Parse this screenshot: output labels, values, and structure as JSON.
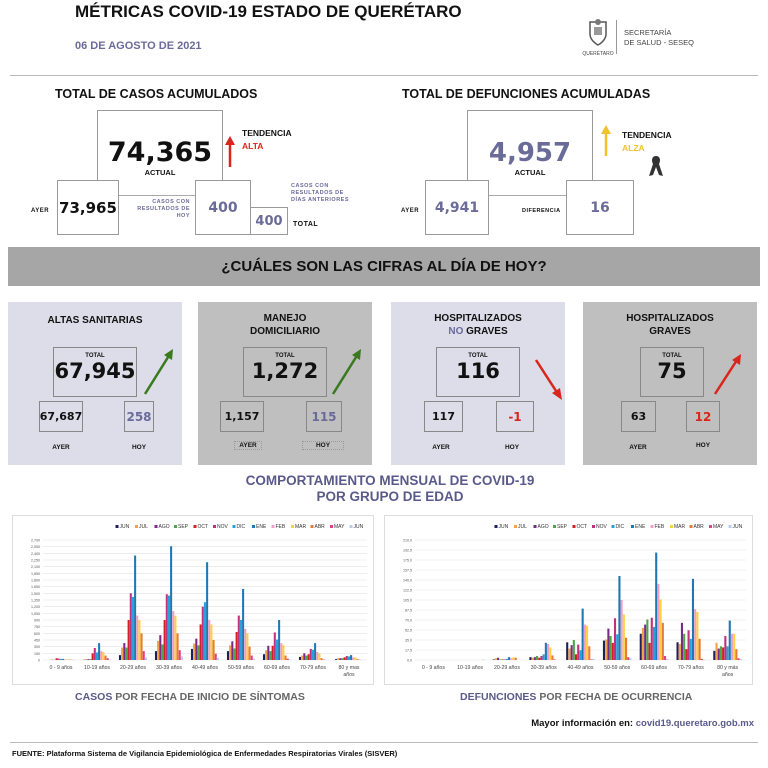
{
  "header": {
    "title": "MÉTRICAS COVID-19 ESTADO DE QUERÉTARO",
    "date": "06 DE AGOSTO DE 2021",
    "logo_text": "QUERÉTARO",
    "org_line1": "SECRETARÍA",
    "org_line2": "DE SALUD - SESEQ"
  },
  "casos": {
    "title": "TOTAL DE CASOS ACUMULADOS",
    "actual": "74,365",
    "actual_label": "ACTUAL",
    "ayer_label": "AYER",
    "ayer": "73,965",
    "hoy_label": "CASOS CON RESULTADOS DE HOY",
    "hoy": "400",
    "anteriores_label": "CASOS CON RESULTADOS DE DÍAS ANTERIORES",
    "total": "400",
    "total_label": "TOTAL",
    "tendencia": "TENDENCIA",
    "tendencia_value": "ALTA",
    "tendencia_color": "#d9261c"
  },
  "defunciones": {
    "title": "TOTAL DE DEFUNCIONES ACUMULADAS",
    "actual": "4,957",
    "actual_label": "ACTUAL",
    "ayer_label": "AYER",
    "ayer": "4,941",
    "diferencia_label": "DIFERENCIA",
    "diferencia": "16",
    "tendencia": "TENDENCIA",
    "tendencia_value": "ALZA",
    "tendencia_color": "#f2c12e"
  },
  "banner": "¿CUÁLES SON LAS CIFRAS AL DÍA DE HOY?",
  "cards": [
    {
      "title": "ALTAS SANITARIAS",
      "title2": "",
      "total_label": "TOTAL",
      "total": "67,945",
      "ayer": "67,687",
      "hoy": "258",
      "ayer_label": "AYER",
      "hoy_label": "HOY",
      "trend": "up",
      "trend_color": "#3a7a1e"
    },
    {
      "title": "MANEJO",
      "title2": "DOMICILIARIO",
      "total_label": "TOTAL",
      "total": "1,272",
      "ayer": "1,157",
      "hoy": "115",
      "ayer_label": "AYER",
      "hoy_label": "HOY",
      "trend": "up",
      "trend_color": "#3a7a1e"
    },
    {
      "title": "HOSPITALIZADOS",
      "title2a": "NO",
      "title2": "GRAVES",
      "total_label": "TOTAL",
      "total": "116",
      "ayer": "117",
      "hoy": "-1",
      "ayer_label": "AYER",
      "hoy_label": "HOY",
      "trend": "down",
      "trend_color": "#d9261c"
    },
    {
      "title": "HOSPITALIZADOS",
      "title2": "GRAVES",
      "total_label": "TOTAL",
      "total": "75",
      "ayer": "63",
      "hoy": "12",
      "ayer_label": "AYER",
      "hoy_label": "HOY",
      "trend": "up",
      "trend_color": "#d9261c"
    }
  ],
  "section_title1": "COMPORTAMIENTO MENSUAL DE COVID-19",
  "section_title2": "POR GRUPO DE EDAD",
  "caption1": {
    "accent": "CASOS",
    "rest": " POR FECHA DE INICIO DE SÍNTOMAS"
  },
  "caption2": {
    "accent": "DEFUNCIONES",
    "rest": " POR FECHA DE OCURRENCIA"
  },
  "more_info_label": "Mayor información en:",
  "more_info_link": "covid19.queretaro.gob.mx",
  "source": "FUENTE: Plataforma Sistema  de Vigilancia Epidemiológica de Enfermedades Respiratorias Virales (SISVER)",
  "chart_data": [
    {
      "type": "bar",
      "title": "",
      "xlabel": "",
      "ylabel": "",
      "ylim": [
        0,
        2700
      ],
      "yticks": [
        "0",
        "150",
        "300",
        "450",
        "600",
        "750",
        "900",
        "1,050",
        "1,200",
        "1,350",
        "1,500",
        "1,650",
        "1,800",
        "1,950",
        "2,100",
        "2,250",
        "2,400",
        "2,550",
        "2,700"
      ],
      "grid": true,
      "legend": "top",
      "categories": [
        "0 - 9 años",
        "10-19 años",
        "20-29 años",
        "30-39 años",
        "40-49 años",
        "50-59 años",
        "60-69 años",
        "70-79 años",
        "80 y mas años"
      ],
      "series": [
        {
          "name": "JUN",
          "color": "#1f1f5c",
          "values": [
            0,
            5,
            110,
            200,
            250,
            200,
            130,
            70,
            20
          ]
        },
        {
          "name": "JUL",
          "color": "#f4a04a",
          "values": [
            5,
            20,
            280,
            430,
            370,
            330,
            220,
            100,
            40
          ]
        },
        {
          "name": "AGO",
          "color": "#7a2a8a",
          "values": [
            5,
            20,
            380,
            560,
            480,
            420,
            320,
            150,
            40
          ]
        },
        {
          "name": "SEP",
          "color": "#4aa84a",
          "values": [
            5,
            20,
            280,
            350,
            330,
            260,
            200,
            100,
            40
          ]
        },
        {
          "name": "OCT",
          "color": "#d42020",
          "values": [
            40,
            150,
            900,
            900,
            800,
            630,
            320,
            130,
            60
          ]
        },
        {
          "name": "NOV",
          "color": "#c03080",
          "values": [
            30,
            270,
            1500,
            1480,
            1200,
            1000,
            620,
            250,
            90
          ]
        },
        {
          "name": "DIC",
          "color": "#2aa0d8",
          "values": [
            25,
            170,
            1420,
            1450,
            1300,
            900,
            460,
            230,
            80
          ]
        },
        {
          "name": "ENE",
          "color": "#1e78b4",
          "values": [
            25,
            380,
            2350,
            2560,
            2200,
            1600,
            900,
            380,
            110
          ]
        },
        {
          "name": "FEB",
          "color": "#f0a0c8",
          "values": [
            15,
            200,
            1000,
            1100,
            900,
            700,
            380,
            180,
            60
          ]
        },
        {
          "name": "MAR",
          "color": "#ffd040",
          "values": [
            15,
            180,
            900,
            1000,
            800,
            600,
            340,
            150,
            60
          ]
        },
        {
          "name": "ABR",
          "color": "#e87a3a",
          "values": [
            10,
            100,
            600,
            600,
            450,
            300,
            100,
            40,
            20
          ]
        },
        {
          "name": "MAY",
          "color": "#e0408a",
          "values": [
            5,
            40,
            200,
            220,
            140,
            100,
            30,
            10,
            5
          ]
        },
        {
          "name": "JUN",
          "color": "#b8cce8",
          "values": [
            2,
            10,
            60,
            80,
            50,
            30,
            10,
            5,
            2
          ]
        }
      ]
    },
    {
      "type": "bar",
      "title": "",
      "xlabel": "",
      "ylabel": "",
      "ylim": [
        0,
        210
      ],
      "yticks": [
        "0.0",
        "17.5",
        "35.0",
        "52.5",
        "70.0",
        "87.5",
        "105.0",
        "122.5",
        "140.0",
        "157.5",
        "175.0",
        "192.5",
        "210.0"
      ],
      "grid": true,
      "legend": "top",
      "categories": [
        "0 - 9 años",
        "10-19 años",
        "20-29 años",
        "30-39 años",
        "40-49 años",
        "50-59 años",
        "60-69 años",
        "70-79 años",
        "80 y más años"
      ],
      "series": [
        {
          "name": "JUN",
          "color": "#1f1f5c",
          "values": [
            0,
            0,
            1,
            5,
            31,
            34,
            46,
            31,
            16
          ]
        },
        {
          "name": "JUL",
          "color": "#f4a04a",
          "values": [
            0,
            0,
            3,
            4,
            20,
            36,
            56,
            28,
            30
          ]
        },
        {
          "name": "AGO",
          "color": "#7a2a8a",
          "values": [
            0,
            0,
            4,
            5,
            26,
            55,
            62,
            65,
            20
          ]
        },
        {
          "name": "SEP",
          "color": "#4aa84a",
          "values": [
            0,
            0,
            1,
            7,
            35,
            42,
            71,
            46,
            24
          ]
        },
        {
          "name": "OCT",
          "color": "#d42020",
          "values": [
            0,
            0,
            1,
            4,
            10,
            30,
            30,
            19,
            22
          ]
        },
        {
          "name": "NOV",
          "color": "#c03080",
          "values": [
            0,
            0,
            1,
            7,
            27,
            73,
            74,
            52,
            42
          ]
        },
        {
          "name": "DIC",
          "color": "#2aa0d8",
          "values": [
            0,
            0,
            2,
            10,
            17,
            45,
            58,
            37,
            24
          ]
        },
        {
          "name": "ENE",
          "color": "#1e78b4",
          "values": [
            0,
            0,
            5,
            30,
            90,
            147,
            188,
            142,
            69
          ]
        },
        {
          "name": "FEB",
          "color": "#f0a0c8",
          "values": [
            0,
            0,
            3,
            28,
            62,
            105,
            133,
            89,
            46
          ]
        },
        {
          "name": "MAR",
          "color": "#ffd040",
          "values": [
            0,
            0,
            5,
            22,
            60,
            80,
            106,
            84,
            46
          ]
        },
        {
          "name": "ABR",
          "color": "#e87a3a",
          "values": [
            0,
            0,
            4,
            8,
            24,
            39,
            65,
            37,
            19
          ]
        },
        {
          "name": "MAY",
          "color": "#e0408a",
          "values": [
            0,
            0,
            0,
            1,
            1,
            5,
            7,
            2,
            3
          ]
        },
        {
          "name": "JUN",
          "color": "#b8cce8",
          "values": [
            0,
            1,
            0,
            0,
            2,
            3,
            2,
            1,
            2
          ]
        }
      ]
    }
  ]
}
